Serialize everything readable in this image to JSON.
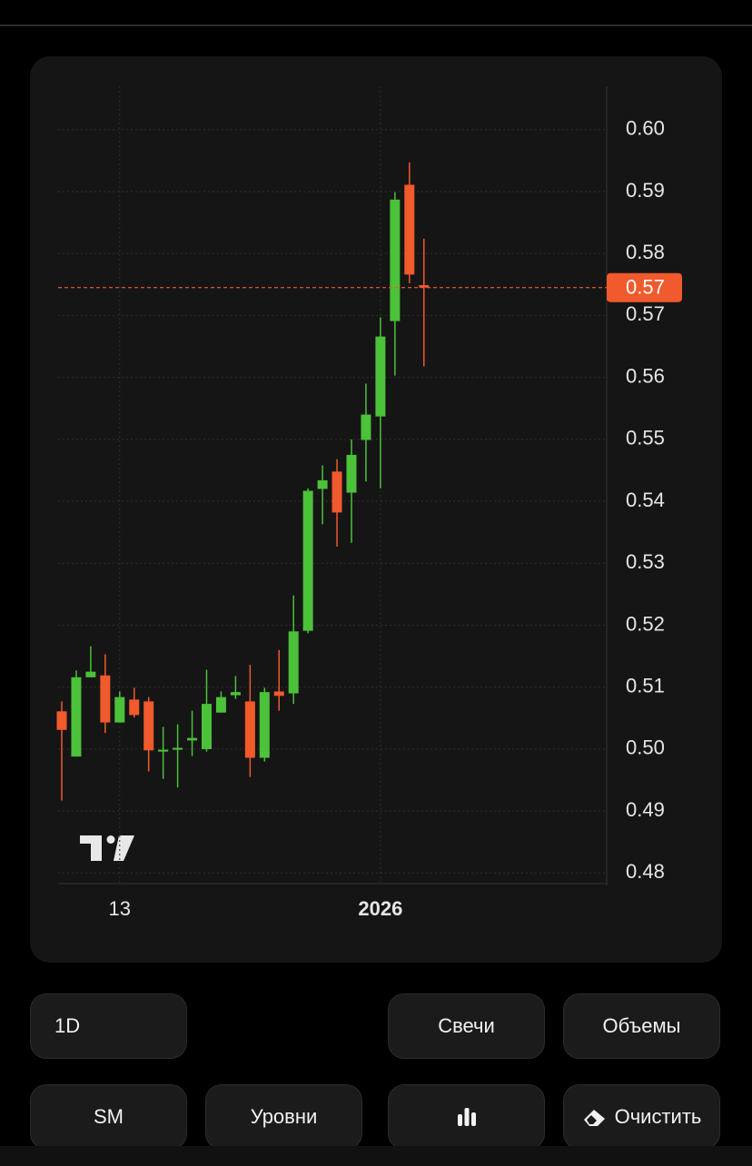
{
  "chart_data": {
    "type": "candlestick",
    "categories": [
      null,
      null,
      null,
      null,
      "13",
      null,
      null,
      null,
      null,
      null,
      null,
      null,
      null,
      null,
      null,
      null,
      null,
      null,
      null,
      null,
      null,
      null,
      "2026",
      null,
      null,
      null
    ],
    "open": [
      0.5061,
      0.4988,
      0.5116,
      0.5119,
      0.5043,
      0.508,
      0.5077,
      0.4996,
      0.4999,
      0.5014,
      0.5,
      0.5059,
      0.5087,
      0.5077,
      0.4986,
      0.5093,
      0.509,
      0.5191,
      0.542,
      0.5448,
      0.5414,
      0.5499,
      0.5537,
      0.5691,
      0.5911,
      0.5749
    ],
    "high": [
      0.5077,
      0.5127,
      0.5166,
      0.5153,
      0.5093,
      0.5099,
      0.5084,
      0.5036,
      0.504,
      0.5062,
      0.5128,
      0.5093,
      0.5118,
      0.5136,
      0.5099,
      0.516,
      0.5248,
      0.5421,
      0.5458,
      0.5468,
      0.55,
      0.559,
      0.5697,
      0.5899,
      0.5947,
      0.5824
    ],
    "low": [
      0.4917,
      0.4988,
      0.5116,
      0.5026,
      0.5043,
      0.5051,
      0.4964,
      0.4952,
      0.4938,
      0.4989,
      0.4996,
      0.5059,
      0.5081,
      0.4955,
      0.498,
      0.5062,
      0.5073,
      0.5187,
      0.5363,
      0.5327,
      0.5333,
      0.5432,
      0.5421,
      0.5603,
      0.5752,
      0.5618
    ],
    "close": [
      0.5031,
      0.5116,
      0.5125,
      0.5043,
      0.5084,
      0.5055,
      0.4998,
      0.4999,
      0.5002,
      0.5018,
      0.5073,
      0.5084,
      0.5092,
      0.4986,
      0.5092,
      0.5086,
      0.519,
      0.5417,
      0.5434,
      0.5382,
      0.5475,
      0.554,
      0.5666,
      0.5887,
      0.5766,
      0.5745
    ],
    "up_color": "#4cc13a",
    "down_color": "#f05a2c",
    "ylim": [
      0.478,
      0.607
    ],
    "yticks": [
      {
        "value": 0.6,
        "label": "0.60"
      },
      0.59,
      0.58,
      0.57,
      0.56,
      0.55,
      0.54,
      0.53,
      0.52,
      0.51,
      {
        "value": 0.5,
        "label": "0.50"
      },
      0.49,
      0.48
    ],
    "price_line": {
      "value": 0.5745,
      "label": "0.57"
    },
    "grid": true
  },
  "controls": {
    "interval": "1D",
    "chart_type": "Свечи",
    "volumes": "Объемы",
    "sm": "SM",
    "levels": "Уровни",
    "clear": "Очистить"
  }
}
